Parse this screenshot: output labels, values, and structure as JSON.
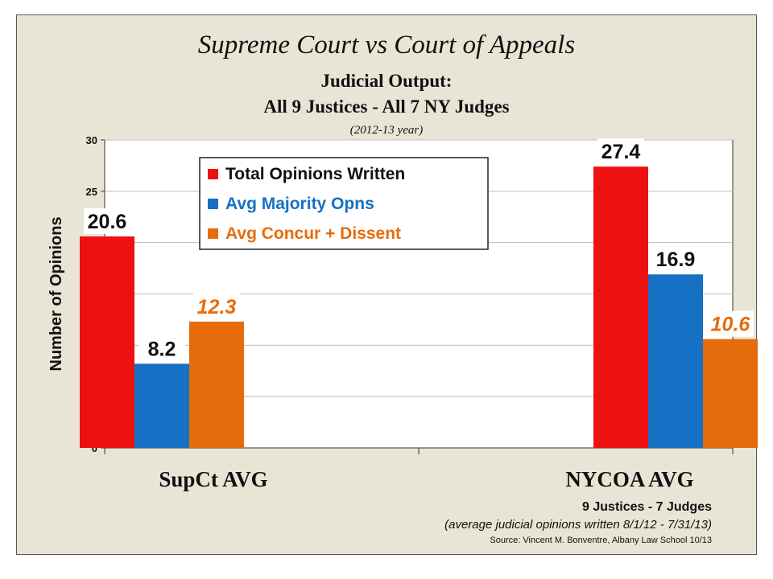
{
  "chart_data": {
    "type": "bar",
    "title": "Supreme Court vs Court of Appeals",
    "subtitle_lines": [
      "Judicial Output:",
      "All 9 Justices - All 7 NY Judges",
      "(2012-13 year)"
    ],
    "ylabel": "Number of Opinions",
    "xlabel": "",
    "ylim": [
      0,
      30
    ],
    "yticks": [
      0,
      5,
      10,
      15,
      20,
      25,
      30
    ],
    "grid": true,
    "legend_position": "top-left",
    "categories": [
      "SupCt AVG",
      "NYCOA AVG"
    ],
    "series": [
      {
        "name": "Total Opinions Written",
        "color": "#ee1111",
        "label_color": "#111111",
        "values": [
          20.6,
          27.4
        ]
      },
      {
        "name": "Avg Majority Opns",
        "color": "#1670c3",
        "label_color": "#111111",
        "values": [
          8.2,
          16.9
        ]
      },
      {
        "name": "Avg Concur + Dissent",
        "color": "#e66c0b",
        "label_color": "#e66c0b",
        "values": [
          12.3,
          10.6
        ]
      }
    ],
    "data_labels": [
      [
        "20.6",
        "8.2",
        "12.3"
      ],
      [
        "27.4",
        "16.9",
        "10.6"
      ]
    ]
  },
  "legend_colors": {
    "Total Opinions Written": "#111111",
    "Avg Majority Opns": "#1670c3",
    "Avg Concur + Dissent": "#e66c0b"
  },
  "footer": {
    "line1": "9 Justices -  7 Judges",
    "line2": "(average judicial opinions written 8/1/12 - 7/31/13)",
    "line3": "Source: Vincent M. Bonventre,  Albany Law School  10/13"
  }
}
